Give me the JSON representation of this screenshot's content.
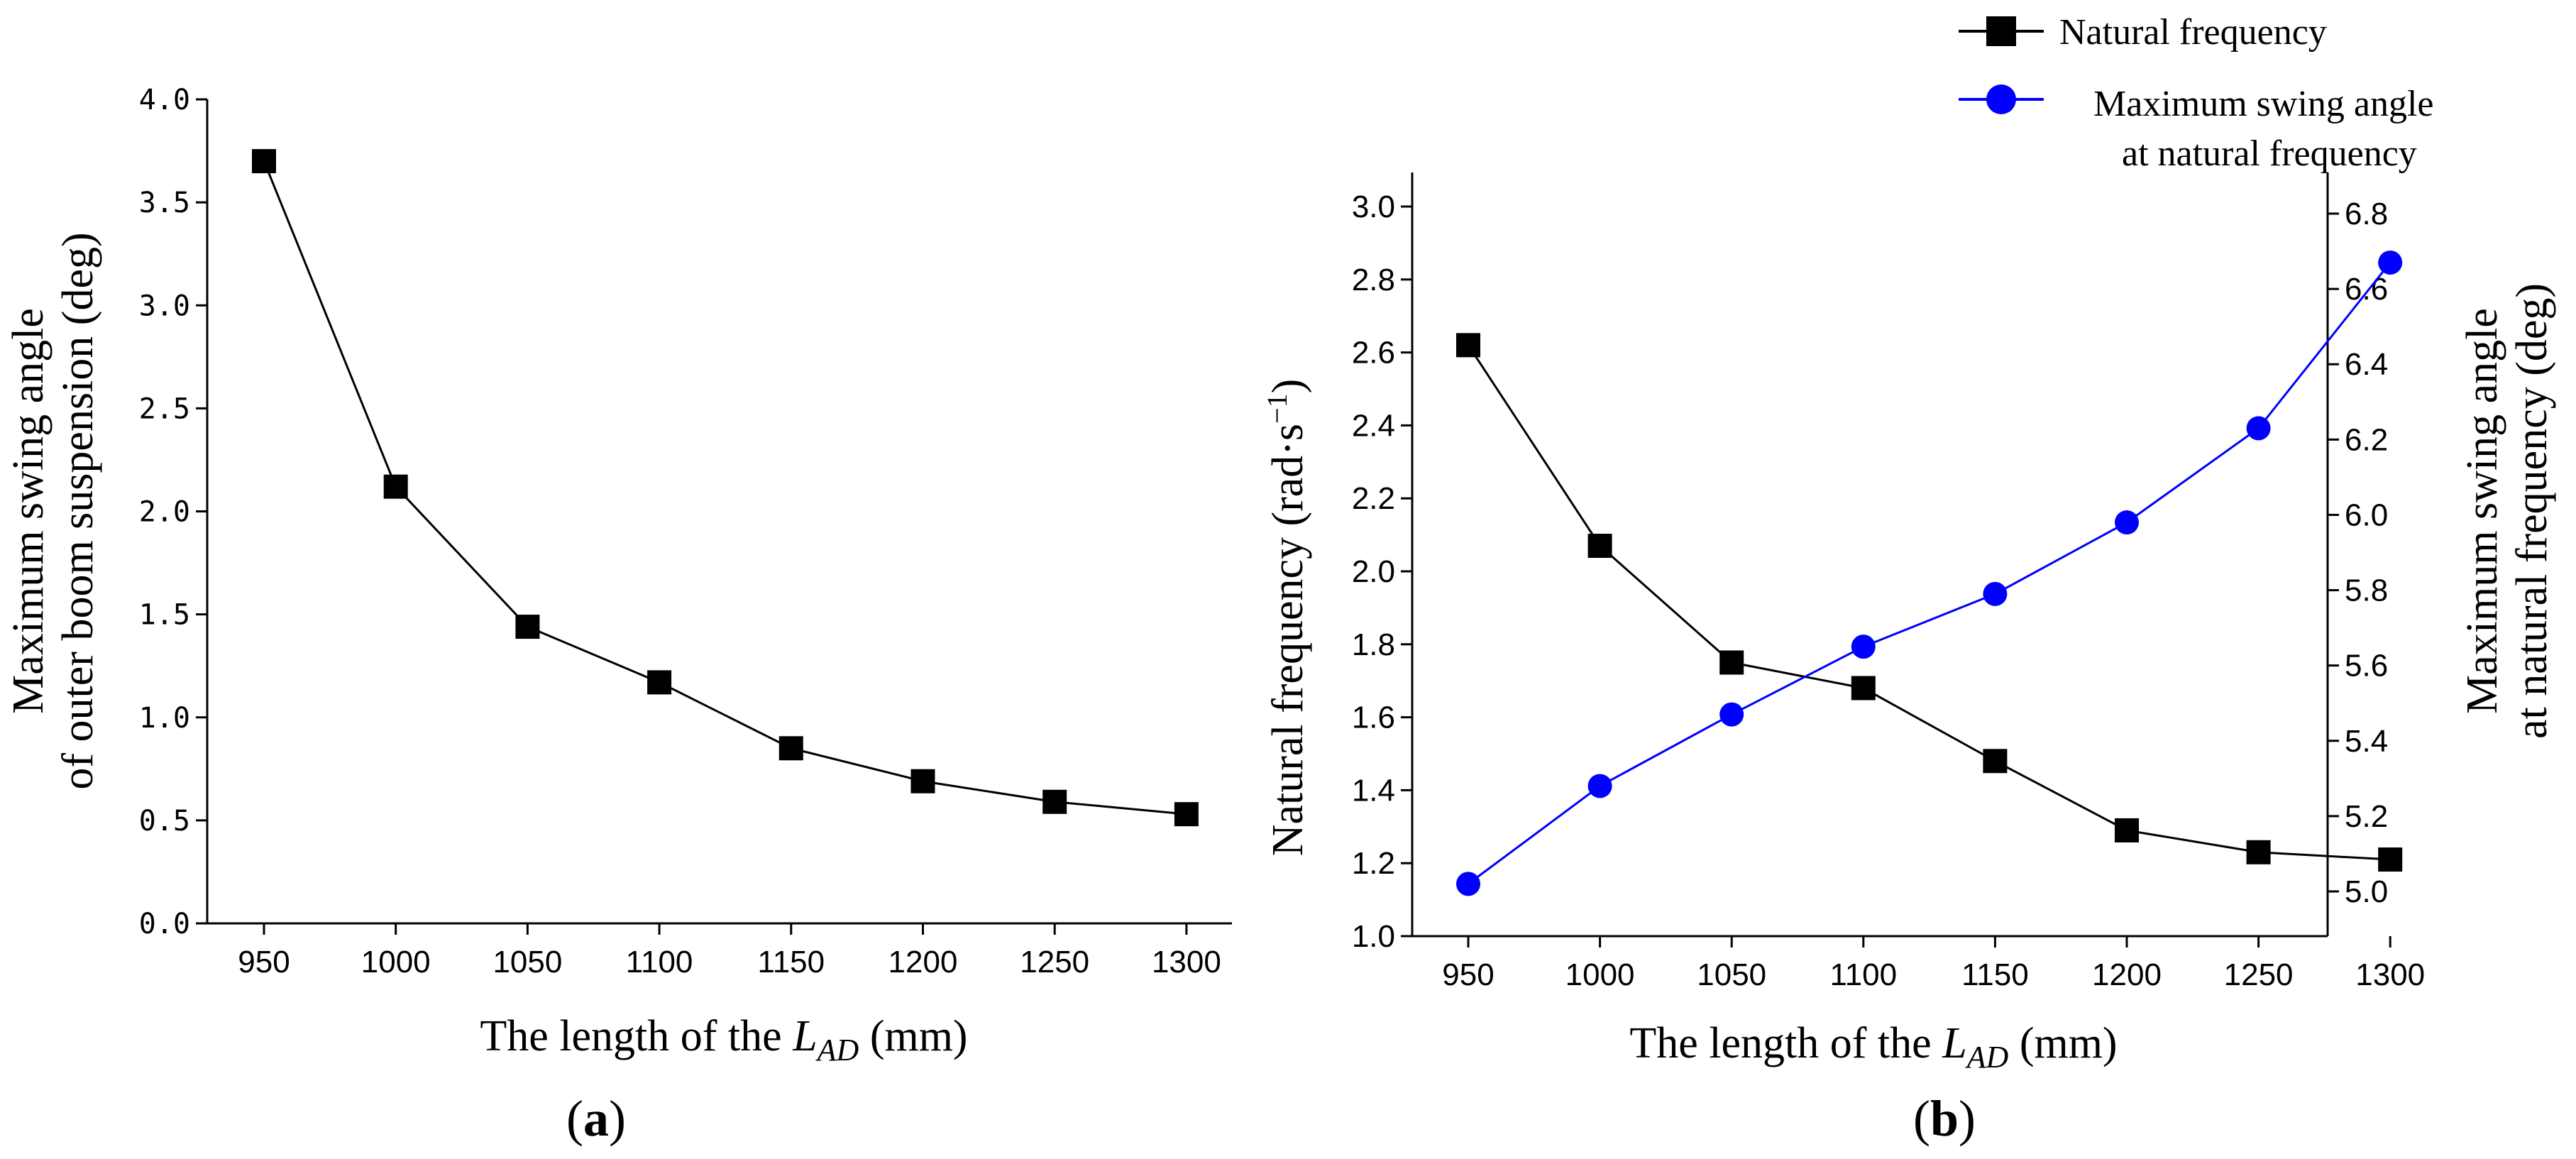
{
  "chart_data": [
    {
      "type": "line",
      "panel_label": "a",
      "title": "",
      "xlabel_prefix": "The length of the ",
      "xlabel_var": "L",
      "xlabel_sub": "AD",
      "xlabel_suffix": " (mm)",
      "ylabel_lines": [
        "Maximum swing angle",
        "of outer boom suspension (deg)"
      ],
      "categories": [
        950,
        1000,
        1050,
        1100,
        1150,
        1200,
        1250,
        1300
      ],
      "x_ticks": [
        "950",
        "1000",
        "1050",
        "1100",
        "1150",
        "1200",
        "1250",
        "1300"
      ],
      "y_ticks": [
        "0.0",
        "0.5",
        "1.0",
        "1.5",
        "2.0",
        "2.5",
        "3.0",
        "3.5",
        "4.0"
      ],
      "ylim": [
        0,
        4
      ],
      "series": [
        {
          "name": "Maximum swing angle of outer boom suspension",
          "color": "#000000",
          "marker": "square",
          "values": [
            3.7,
            2.12,
            1.44,
            1.17,
            0.85,
            0.69,
            0.59,
            0.53
          ]
        }
      ]
    },
    {
      "type": "line",
      "panel_label": "b",
      "title": "",
      "xlabel_prefix": "The length of the ",
      "xlabel_var": "L",
      "xlabel_sub": "AD",
      "xlabel_suffix": " (mm)",
      "ylabel_left": "Natural frequency (rad·s",
      "ylabel_left_sup": "−1",
      "ylabel_left_end": ")",
      "ylabel_right_lines": [
        "Maximum swing angle",
        "at natural frequency (deg)"
      ],
      "categories": [
        950,
        1000,
        1050,
        1100,
        1150,
        1200,
        1250,
        1300
      ],
      "x_ticks": [
        "950",
        "1000",
        "1050",
        "1100",
        "1150",
        "1200",
        "1250",
        "1300"
      ],
      "y_left_ticks": [
        "1.0",
        "1.2",
        "1.4",
        "1.6",
        "1.8",
        "2.0",
        "2.2",
        "2.4",
        "2.6",
        "2.8",
        "3.0"
      ],
      "y_right_ticks": [
        "5.0",
        "5.2",
        "5.4",
        "5.6",
        "5.8",
        "6.0",
        "6.2",
        "6.4",
        "6.6",
        "6.8"
      ],
      "ylim_left": [
        1.0,
        3.1
      ],
      "ylim_right": [
        4.96,
        6.88
      ],
      "legend_position": "top-right",
      "series": [
        {
          "name": "Natural frequency",
          "legend_label": "Natural frequency",
          "axis": "left",
          "color": "#000000",
          "marker": "square",
          "values": [
            2.62,
            2.07,
            1.75,
            1.68,
            1.48,
            1.29,
            1.23,
            1.21
          ]
        },
        {
          "name": "Maximum swing angle at natural frequency",
          "legend_lines": [
            "Maximum swing angle",
            "at natural frequency"
          ],
          "axis": "right",
          "color": "#0000ff",
          "marker": "circle",
          "values": [
            5.02,
            5.28,
            5.47,
            5.65,
            5.79,
            5.98,
            6.23,
            6.67
          ]
        }
      ]
    }
  ]
}
